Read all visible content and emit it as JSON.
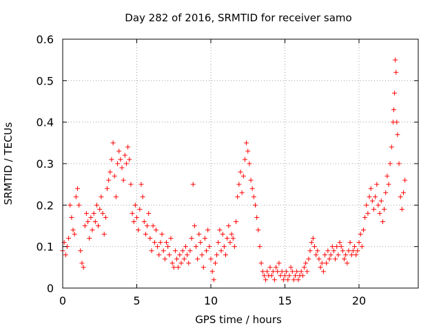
{
  "chart_data": {
    "type": "scatter",
    "title": "Day 282 of 2016, SRMTID for receiver samo",
    "xlabel": "GPS time / hours",
    "ylabel": "SRMTID / TECUs",
    "xlim": [
      0,
      24
    ],
    "ylim": [
      0,
      0.6
    ],
    "xticks": [
      0,
      5,
      10,
      15,
      20
    ],
    "yticks": [
      0,
      0.1,
      0.2,
      0.3,
      0.4,
      0.5,
      0.6
    ],
    "xtick_labels": [
      "0",
      "5",
      "10",
      "15",
      "20"
    ],
    "ytick_labels": [
      "0",
      "0.1",
      "0.2",
      "0.3",
      "0.4",
      "0.5",
      "0.6"
    ],
    "grid": true,
    "marker": "+",
    "color": "#ff0000",
    "series": [
      {
        "name": "SRMTID",
        "points": [
          [
            0.0,
            0.09
          ],
          [
            0.1,
            0.11
          ],
          [
            0.2,
            0.08
          ],
          [
            0.3,
            0.1
          ],
          [
            0.4,
            0.12
          ],
          [
            0.5,
            0.2
          ],
          [
            0.6,
            0.17
          ],
          [
            0.7,
            0.14
          ],
          [
            0.8,
            0.13
          ],
          [
            0.9,
            0.22
          ],
          [
            1.0,
            0.24
          ],
          [
            1.1,
            0.2
          ],
          [
            1.2,
            0.09
          ],
          [
            1.3,
            0.06
          ],
          [
            1.4,
            0.05
          ],
          [
            1.5,
            0.15
          ],
          [
            1.6,
            0.18
          ],
          [
            1.7,
            0.16
          ],
          [
            1.8,
            0.12
          ],
          [
            1.9,
            0.17
          ],
          [
            2.0,
            0.14
          ],
          [
            2.1,
            0.18
          ],
          [
            2.2,
            0.16
          ],
          [
            2.3,
            0.2
          ],
          [
            2.4,
            0.15
          ],
          [
            2.5,
            0.19
          ],
          [
            2.6,
            0.22
          ],
          [
            2.7,
            0.18
          ],
          [
            2.8,
            0.13
          ],
          [
            2.9,
            0.17
          ],
          [
            3.0,
            0.24
          ],
          [
            3.1,
            0.26
          ],
          [
            3.2,
            0.28
          ],
          [
            3.3,
            0.31
          ],
          [
            3.4,
            0.35
          ],
          [
            3.5,
            0.27
          ],
          [
            3.6,
            0.22
          ],
          [
            3.7,
            0.3
          ],
          [
            3.8,
            0.33
          ],
          [
            3.9,
            0.31
          ],
          [
            4.0,
            0.29
          ],
          [
            4.1,
            0.26
          ],
          [
            4.2,
            0.32
          ],
          [
            4.3,
            0.3
          ],
          [
            4.4,
            0.34
          ],
          [
            4.5,
            0.31
          ],
          [
            4.6,
            0.25
          ],
          [
            4.7,
            0.18
          ],
          [
            4.8,
            0.16
          ],
          [
            4.9,
            0.2
          ],
          [
            5.0,
            0.17
          ],
          [
            5.1,
            0.14
          ],
          [
            5.2,
            0.19
          ],
          [
            5.3,
            0.25
          ],
          [
            5.4,
            0.22
          ],
          [
            5.5,
            0.16
          ],
          [
            5.6,
            0.13
          ],
          [
            5.7,
            0.15
          ],
          [
            5.8,
            0.18
          ],
          [
            5.9,
            0.12
          ],
          [
            6.0,
            0.09
          ],
          [
            6.1,
            0.15
          ],
          [
            6.2,
            0.11
          ],
          [
            6.3,
            0.14
          ],
          [
            6.4,
            0.1
          ],
          [
            6.5,
            0.08
          ],
          [
            6.6,
            0.11
          ],
          [
            6.7,
            0.13
          ],
          [
            6.8,
            0.09
          ],
          [
            6.9,
            0.07
          ],
          [
            7.0,
            0.11
          ],
          [
            7.1,
            0.1
          ],
          [
            7.2,
            0.08
          ],
          [
            7.3,
            0.12
          ],
          [
            7.4,
            0.06
          ],
          [
            7.5,
            0.05
          ],
          [
            7.6,
            0.09
          ],
          [
            7.7,
            0.07
          ],
          [
            7.8,
            0.05
          ],
          [
            7.9,
            0.08
          ],
          [
            8.0,
            0.06
          ],
          [
            8.1,
            0.09
          ],
          [
            8.2,
            0.07
          ],
          [
            8.3,
            0.1
          ],
          [
            8.4,
            0.08
          ],
          [
            8.5,
            0.06
          ],
          [
            8.6,
            0.09
          ],
          [
            8.7,
            0.12
          ],
          [
            8.8,
            0.25
          ],
          [
            8.9,
            0.15
          ],
          [
            9.0,
            0.1
          ],
          [
            9.1,
            0.07
          ],
          [
            9.2,
            0.13
          ],
          [
            9.3,
            0.11
          ],
          [
            9.4,
            0.08
          ],
          [
            9.5,
            0.05
          ],
          [
            9.6,
            0.12
          ],
          [
            9.7,
            0.09
          ],
          [
            9.8,
            0.14
          ],
          [
            9.9,
            0.1
          ],
          [
            10.0,
            0.07
          ],
          [
            10.1,
            0.04
          ],
          [
            10.2,
            0.02
          ],
          [
            10.3,
            0.06
          ],
          [
            10.4,
            0.08
          ],
          [
            10.5,
            0.11
          ],
          [
            10.6,
            0.14
          ],
          [
            10.7,
            0.09
          ],
          [
            10.8,
            0.13
          ],
          [
            10.9,
            0.1
          ],
          [
            11.0,
            0.08
          ],
          [
            11.1,
            0.12
          ],
          [
            11.2,
            0.15
          ],
          [
            11.3,
            0.11
          ],
          [
            11.4,
            0.13
          ],
          [
            11.5,
            0.12
          ],
          [
            11.6,
            0.1
          ],
          [
            11.7,
            0.16
          ],
          [
            11.8,
            0.22
          ],
          [
            11.9,
            0.25
          ],
          [
            12.0,
            0.28
          ],
          [
            12.1,
            0.23
          ],
          [
            12.2,
            0.27
          ],
          [
            12.3,
            0.31
          ],
          [
            12.4,
            0.35
          ],
          [
            12.5,
            0.33
          ],
          [
            12.6,
            0.3
          ],
          [
            12.7,
            0.26
          ],
          [
            12.8,
            0.24
          ],
          [
            12.9,
            0.22
          ],
          [
            13.0,
            0.2
          ],
          [
            13.1,
            0.17
          ],
          [
            13.2,
            0.14
          ],
          [
            13.3,
            0.1
          ],
          [
            13.4,
            0.06
          ],
          [
            13.5,
            0.04
          ],
          [
            13.6,
            0.03
          ],
          [
            13.7,
            0.02
          ],
          [
            13.8,
            0.04
          ],
          [
            13.9,
            0.03
          ],
          [
            14.0,
            0.05
          ],
          [
            14.1,
            0.03
          ],
          [
            14.2,
            0.04
          ],
          [
            14.3,
            0.02
          ],
          [
            14.4,
            0.05
          ],
          [
            14.5,
            0.04
          ],
          [
            14.6,
            0.06
          ],
          [
            14.7,
            0.03
          ],
          [
            14.8,
            0.04
          ],
          [
            14.9,
            0.02
          ],
          [
            15.0,
            0.03
          ],
          [
            15.1,
            0.04
          ],
          [
            15.2,
            0.02
          ],
          [
            15.3,
            0.03
          ],
          [
            15.4,
            0.05
          ],
          [
            15.5,
            0.04
          ],
          [
            15.6,
            0.02
          ],
          [
            15.7,
            0.03
          ],
          [
            15.8,
            0.04
          ],
          [
            15.9,
            0.02
          ],
          [
            16.0,
            0.03
          ],
          [
            16.1,
            0.04
          ],
          [
            16.2,
            0.03
          ],
          [
            16.3,
            0.05
          ],
          [
            16.4,
            0.06
          ],
          [
            16.5,
            0.04
          ],
          [
            16.6,
            0.07
          ],
          [
            16.7,
            0.09
          ],
          [
            16.8,
            0.11
          ],
          [
            16.9,
            0.12
          ],
          [
            17.0,
            0.1
          ],
          [
            17.1,
            0.08
          ],
          [
            17.2,
            0.09
          ],
          [
            17.3,
            0.07
          ],
          [
            17.4,
            0.05
          ],
          [
            17.5,
            0.06
          ],
          [
            17.6,
            0.04
          ],
          [
            17.7,
            0.08
          ],
          [
            17.8,
            0.06
          ],
          [
            17.9,
            0.09
          ],
          [
            18.0,
            0.07
          ],
          [
            18.1,
            0.08
          ],
          [
            18.2,
            0.1
          ],
          [
            18.3,
            0.09
          ],
          [
            18.4,
            0.07
          ],
          [
            18.5,
            0.1
          ],
          [
            18.6,
            0.08
          ],
          [
            18.7,
            0.11
          ],
          [
            18.8,
            0.1
          ],
          [
            18.9,
            0.09
          ],
          [
            19.0,
            0.07
          ],
          [
            19.1,
            0.08
          ],
          [
            19.2,
            0.06
          ],
          [
            19.3,
            0.09
          ],
          [
            19.4,
            0.11
          ],
          [
            19.5,
            0.08
          ],
          [
            19.6,
            0.09
          ],
          [
            19.7,
            0.1
          ],
          [
            19.8,
            0.08
          ],
          [
            19.9,
            0.09
          ],
          [
            20.0,
            0.11
          ],
          [
            20.1,
            0.13
          ],
          [
            20.2,
            0.1
          ],
          [
            20.3,
            0.14
          ],
          [
            20.4,
            0.17
          ],
          [
            20.5,
            0.2
          ],
          [
            20.6,
            0.18
          ],
          [
            20.7,
            0.22
          ],
          [
            20.8,
            0.24
          ],
          [
            20.9,
            0.21
          ],
          [
            21.0,
            0.19
          ],
          [
            21.1,
            0.22
          ],
          [
            21.2,
            0.25
          ],
          [
            21.3,
            0.2
          ],
          [
            21.4,
            0.18
          ],
          [
            21.5,
            0.21
          ],
          [
            21.6,
            0.16
          ],
          [
            21.7,
            0.19
          ],
          [
            21.8,
            0.23
          ],
          [
            21.9,
            0.27
          ],
          [
            22.0,
            0.25
          ],
          [
            22.1,
            0.3
          ],
          [
            22.2,
            0.34
          ],
          [
            22.3,
            0.4
          ],
          [
            22.35,
            0.43
          ],
          [
            22.4,
            0.47
          ],
          [
            22.45,
            0.55
          ],
          [
            22.5,
            0.52
          ],
          [
            22.55,
            0.4
          ],
          [
            22.6,
            0.37
          ],
          [
            22.7,
            0.3
          ],
          [
            22.8,
            0.22
          ],
          [
            22.9,
            0.19
          ],
          [
            23.0,
            0.23
          ],
          [
            23.1,
            0.26
          ]
        ]
      }
    ]
  }
}
